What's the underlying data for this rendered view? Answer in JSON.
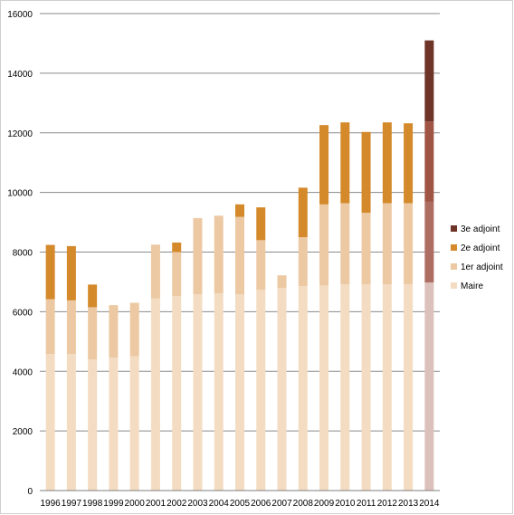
{
  "chart_data": {
    "type": "bar",
    "stacked": true,
    "categories": [
      "1996",
      "1997",
      "1998",
      "1999",
      "2000",
      "2001",
      "2002",
      "2003",
      "2004",
      "2005",
      "2006",
      "2007",
      "2008",
      "2009",
      "2010",
      "2011",
      "2012",
      "2013",
      "2014"
    ],
    "series": [
      {
        "name": "Maire",
        "color": "#f3dcc2",
        "values": [
          4580,
          4580,
          4400,
          4460,
          4500,
          6450,
          6520,
          6580,
          6620,
          6580,
          6740,
          6800,
          6860,
          6880,
          6920,
          6920,
          6920,
          6920,
          6980
        ]
      },
      {
        "name": "1er adjoint",
        "color": "#ecc9a3",
        "values": [
          1840,
          1800,
          1750,
          1760,
          1800,
          1800,
          1480,
          2560,
          2600,
          2600,
          1660,
          420,
          1640,
          2720,
          2720,
          2400,
          2720,
          2720,
          2720
        ]
      },
      {
        "name": "2e adjoint",
        "color": "#d4892a",
        "values": [
          1820,
          1820,
          760,
          0,
          0,
          0,
          320,
          0,
          0,
          420,
          1100,
          0,
          1660,
          2660,
          2710,
          2710,
          2710,
          2680,
          2680
        ]
      },
      {
        "name": "3e adjoint",
        "color": "#6e3428",
        "values": [
          0,
          0,
          0,
          0,
          0,
          0,
          0,
          0,
          0,
          0,
          0,
          0,
          0,
          0,
          0,
          0,
          0,
          0,
          2720
        ]
      }
    ],
    "highlight": {
      "category": "2014",
      "colors": [
        "#dcc0bb",
        "#ae6d62",
        "#a05444",
        "#6e3428"
      ]
    },
    "ylim": [
      0,
      16000
    ],
    "yticks": [
      "0",
      "2000",
      "4000",
      "6000",
      "8000",
      "10000",
      "12000",
      "14000",
      "16000"
    ],
    "grid": true,
    "legend_position": "right",
    "legend_order": [
      3,
      2,
      1,
      0
    ]
  }
}
